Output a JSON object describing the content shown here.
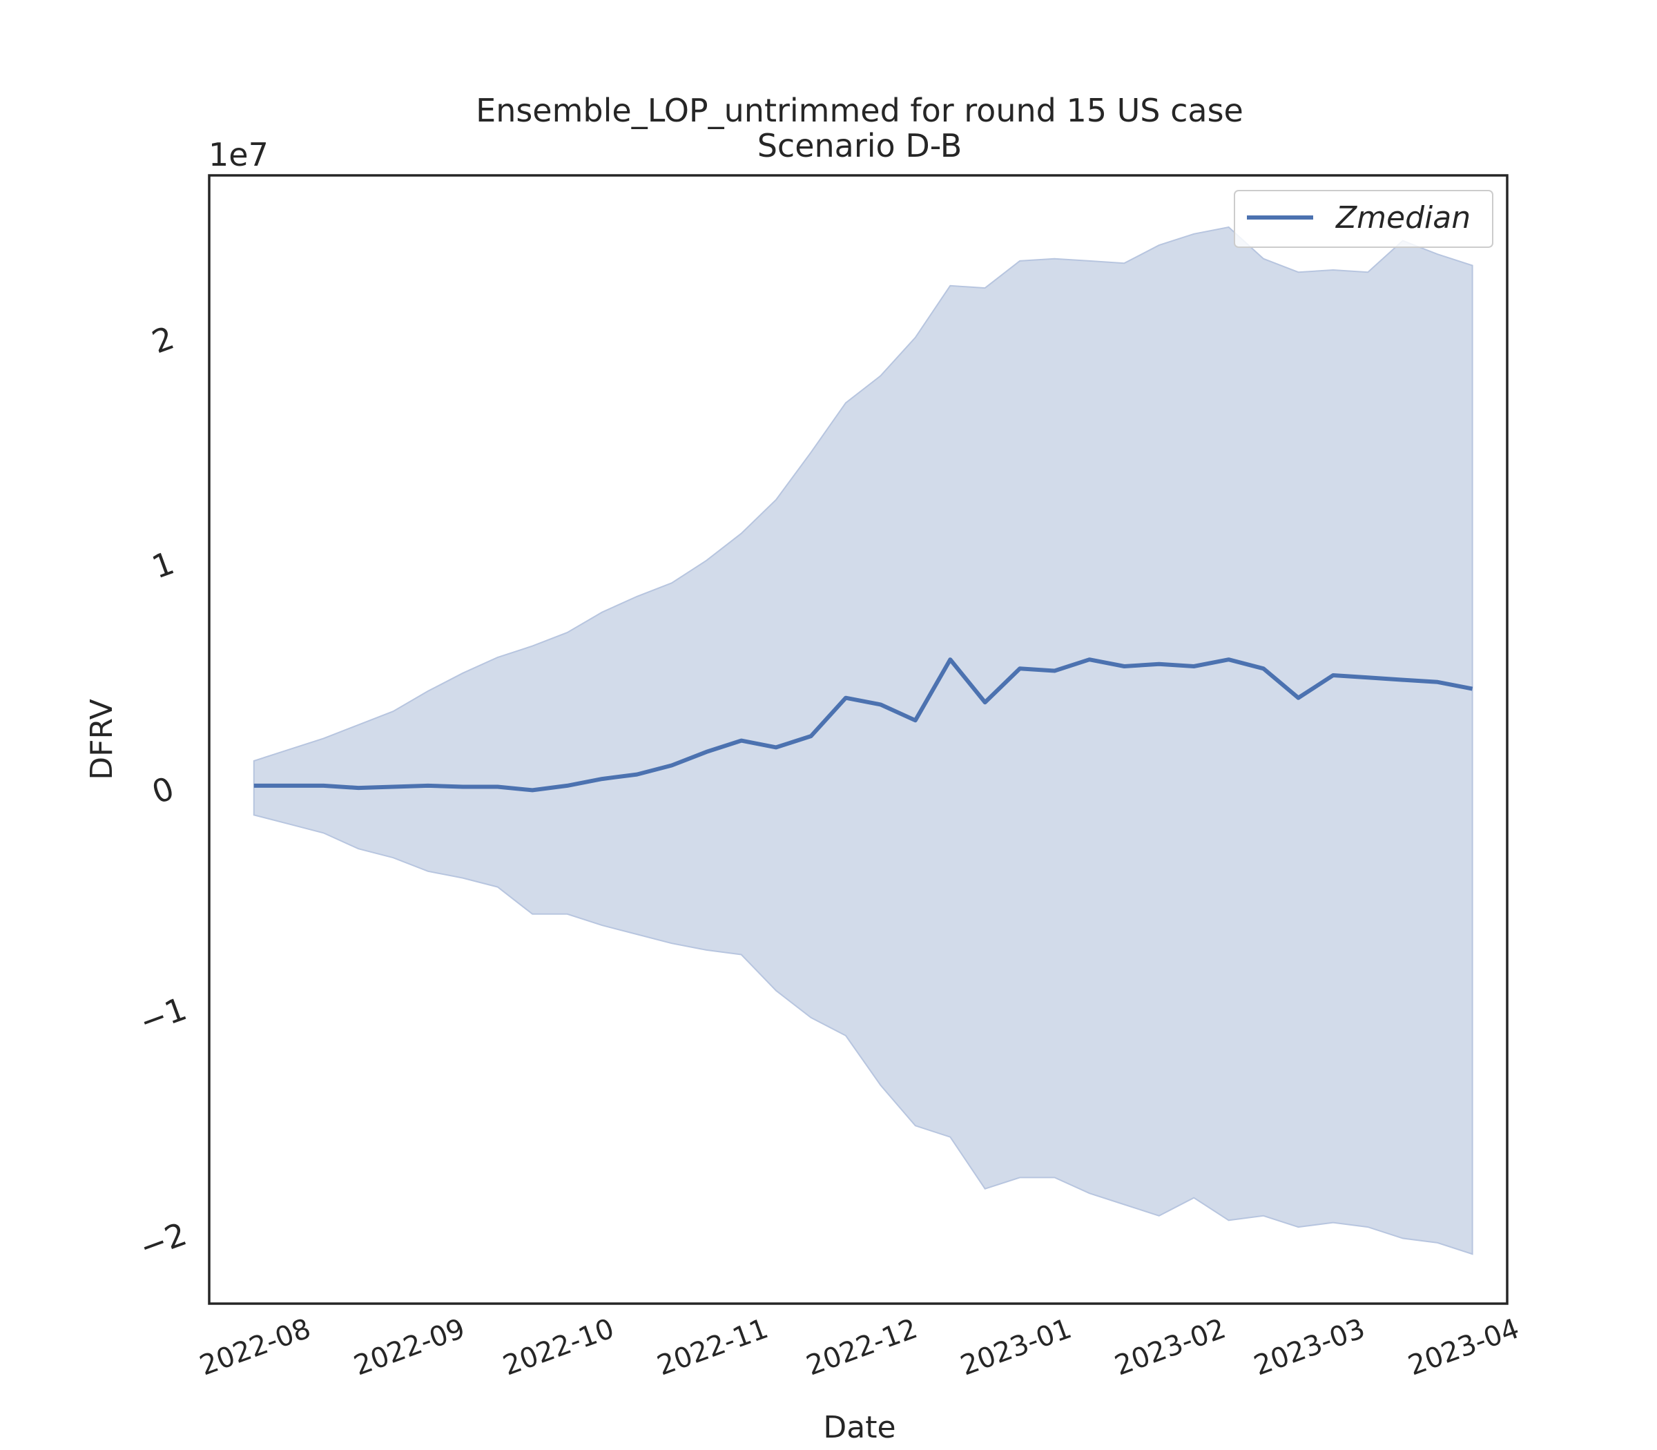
{
  "chart_data": {
    "type": "line",
    "title": "Ensemble_LOP_untrimmed for round 15 US case",
    "subtitle": "Scenario D-B",
    "xlabel": "Date",
    "ylabel": "DFRV",
    "y_offset_label": "1e7",
    "ylim": [
      -2.28,
      2.73
    ],
    "xlim": [
      "2022-07-14",
      "2023-04-01"
    ],
    "x_ticks": [
      "2022-08",
      "2022-09",
      "2022-10",
      "2022-11",
      "2022-12",
      "2023-01",
      "2023-02",
      "2023-03",
      "2023-04"
    ],
    "y_ticks": [
      -2,
      -1,
      0,
      1,
      2
    ],
    "legend": {
      "entries": [
        "Zmedian"
      ],
      "placement": "upper right"
    },
    "grid": false,
    "colors": {
      "line": "#4c72b0",
      "band": "#d2dbea",
      "band_edge": "#b7c5df"
    },
    "x": [
      "2022-07-23",
      "2022-07-30",
      "2022-08-06",
      "2022-08-13",
      "2022-08-20",
      "2022-08-27",
      "2022-09-03",
      "2022-09-10",
      "2022-09-17",
      "2022-09-24",
      "2022-10-01",
      "2022-10-08",
      "2022-10-15",
      "2022-10-22",
      "2022-10-29",
      "2022-11-05",
      "2022-11-12",
      "2022-11-19",
      "2022-11-26",
      "2022-12-03",
      "2022-12-10",
      "2022-12-17",
      "2022-12-24",
      "2022-12-31",
      "2023-01-07",
      "2023-01-14",
      "2023-01-21",
      "2023-01-28",
      "2023-02-04",
      "2023-02-11",
      "2023-02-18",
      "2023-02-25",
      "2023-03-04",
      "2023-03-11",
      "2023-03-18",
      "2023-03-25"
    ],
    "series": [
      {
        "name": "Zmedian",
        "values": [
          0.02,
          0.02,
          0.02,
          0.01,
          0.015,
          0.02,
          0.015,
          0.015,
          0.0,
          0.02,
          0.05,
          0.07,
          0.11,
          0.17,
          0.22,
          0.19,
          0.24,
          0.41,
          0.38,
          0.31,
          0.58,
          0.39,
          0.54,
          0.53,
          0.58,
          0.55,
          0.56,
          0.55,
          0.58,
          0.54,
          0.41,
          0.51,
          0.5,
          0.49,
          0.48,
          0.45
        ]
      },
      {
        "name": "lower",
        "values": [
          -0.11,
          -0.15,
          -0.19,
          -0.26,
          -0.3,
          -0.36,
          -0.39,
          -0.43,
          -0.55,
          -0.55,
          -0.6,
          -0.64,
          -0.68,
          -0.71,
          -0.73,
          -0.89,
          -1.01,
          -1.09,
          -1.31,
          -1.49,
          -1.54,
          -1.77,
          -1.72,
          -1.72,
          -1.79,
          -1.84,
          -1.89,
          -1.81,
          -1.91,
          -1.89,
          -1.94,
          -1.92,
          -1.94,
          -1.99,
          -2.01,
          -2.06
        ]
      },
      {
        "name": "upper",
        "values": [
          0.13,
          0.18,
          0.23,
          0.29,
          0.35,
          0.44,
          0.52,
          0.59,
          0.64,
          0.7,
          0.79,
          0.86,
          0.92,
          1.02,
          1.14,
          1.29,
          1.5,
          1.72,
          1.84,
          2.01,
          2.24,
          2.23,
          2.35,
          2.36,
          2.35,
          2.34,
          2.42,
          2.47,
          2.5,
          2.36,
          2.3,
          2.31,
          2.3,
          2.44,
          2.38,
          2.33
        ]
      }
    ]
  }
}
